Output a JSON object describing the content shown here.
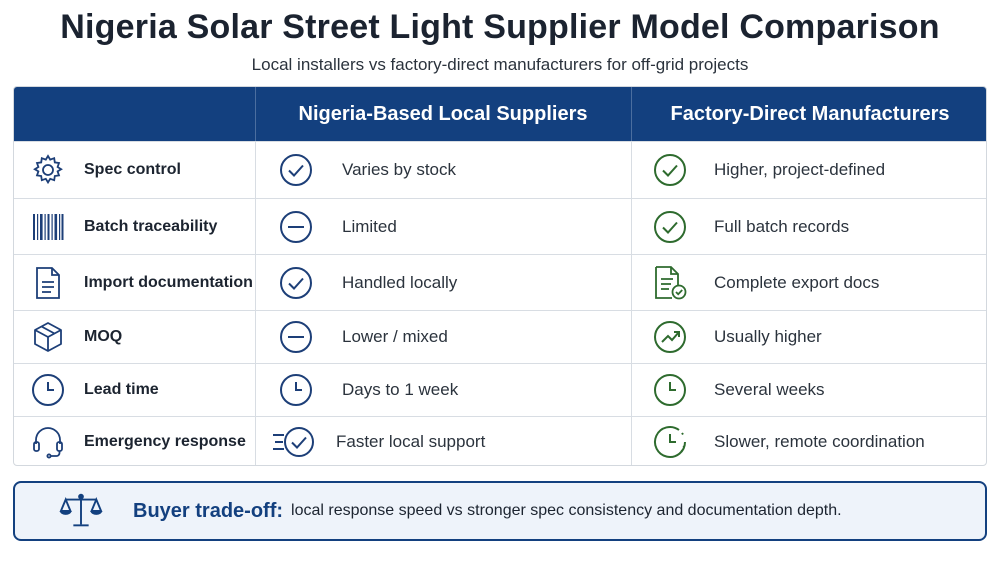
{
  "header": {
    "title": "Nigeria Solar Street Light Supplier Model Comparison",
    "subtitle": "Local installers vs factory-direct manufacturers for off-grid projects"
  },
  "table": {
    "columns": [
      "Nigeria-Based Local Suppliers",
      "Factory-Direct Manufacturers"
    ],
    "rows": [
      {
        "feature": "Spec control",
        "feature_icon": "gear-icon",
        "local": "Varies by stock",
        "local_icon": "check-circle-icon",
        "factory": "Higher, project-defined",
        "factory_icon": "check-circle-icon"
      },
      {
        "feature": "Batch traceability",
        "feature_icon": "barcode-icon",
        "local": "Limited",
        "local_icon": "minus-circle-icon",
        "factory": "Full batch records",
        "factory_icon": "check-circle-icon"
      },
      {
        "feature": "Import documentation",
        "feature_icon": "document-icon",
        "local": "Handled locally",
        "local_icon": "check-circle-icon",
        "factory": "Complete export docs",
        "factory_icon": "document-check-icon"
      },
      {
        "feature": "MOQ",
        "feature_icon": "box-icon",
        "local": "Lower / mixed",
        "local_icon": "minus-circle-icon",
        "factory": "Usually higher",
        "factory_icon": "trend-up-circle-icon"
      },
      {
        "feature": "Lead time",
        "feature_icon": "clock-icon",
        "local": "Days to 1 week",
        "local_icon": "clock-icon",
        "factory": "Several weeks",
        "factory_icon": "clock-icon"
      },
      {
        "feature": "Emergency response",
        "feature_icon": "headset-icon",
        "local": "Faster local support",
        "local_icon": "fast-check-icon",
        "factory": "Slower, remote coordination",
        "factory_icon": "dashed-clock-icon"
      }
    ]
  },
  "callout": {
    "icon": "scale-icon",
    "lead": "Buyer trade-off:",
    "text": "local response speed vs stronger spec consistency and documentation depth."
  },
  "colors": {
    "header_bg": "#13407f",
    "local_icon": "#1d3f78",
    "factory_icon": "#2e6b2e",
    "callout_bg": "#eef3fa"
  }
}
